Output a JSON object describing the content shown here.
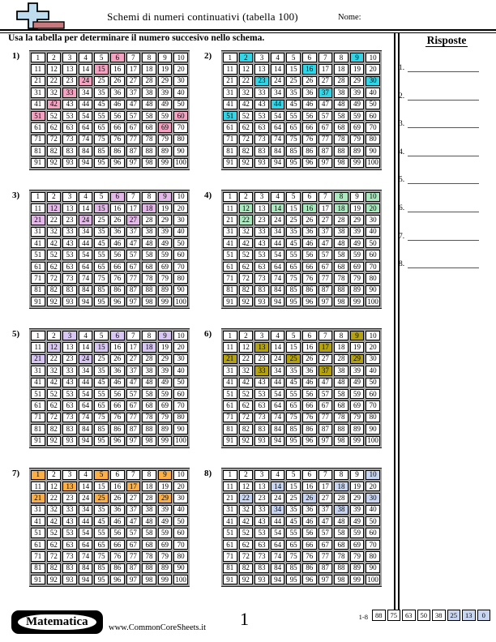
{
  "header": {
    "title": "Schemi di numeri continuativi (tabella 100)",
    "name_label": "Nome:",
    "instruction": "Usa la tabella per determinare il numero succesivo nello schema.",
    "logo_icon": "plus-cross-and-bar-logo"
  },
  "answers": {
    "heading": "Risposte",
    "labels": [
      "1.",
      "2.",
      "3.",
      "4.",
      "5.",
      "6.",
      "7.",
      "8."
    ]
  },
  "grid_spec": {
    "start": 1,
    "end": 100,
    "columns": 10
  },
  "grids": [
    {
      "label": "1)",
      "highlight_color": "#F5A3C2",
      "highlighted": [
        6,
        15,
        24,
        33,
        42,
        51,
        60,
        69
      ]
    },
    {
      "label": "2)",
      "highlight_color": "#33D6E6",
      "highlighted": [
        2,
        9,
        16,
        23,
        30,
        37,
        44,
        51
      ]
    },
    {
      "label": "3)",
      "highlight_color": "#E3B9E8",
      "highlighted": [
        6,
        9,
        12,
        15,
        18,
        21,
        24,
        27
      ]
    },
    {
      "label": "4)",
      "highlight_color": "#ACE8BF",
      "highlighted": [
        8,
        10,
        12,
        14,
        16,
        18,
        20,
        22
      ]
    },
    {
      "label": "5)",
      "highlight_color": "#D7C7F2",
      "highlighted": [
        3,
        6,
        9,
        12,
        15,
        18,
        21,
        24
      ]
    },
    {
      "label": "6)",
      "highlight_color": "#B4A30E",
      "highlighted": [
        9,
        13,
        17,
        21,
        25,
        29,
        33,
        37
      ]
    },
    {
      "label": "7)",
      "highlight_color": "#FBB047",
      "highlighted": [
        1,
        5,
        9,
        13,
        17,
        21,
        25,
        29
      ]
    },
    {
      "label": "8)",
      "highlight_color": "#C9D6F2",
      "highlighted": [
        10,
        14,
        18,
        22,
        26,
        30,
        34,
        38
      ]
    }
  ],
  "footer": {
    "badge_label": "Matematica",
    "url": "www.CommonCoreSheets.it",
    "page_number": "1",
    "score": {
      "label": "1-8",
      "values": [
        "88",
        "75",
        "63",
        "50",
        "38",
        "25",
        "13",
        "0"
      ],
      "highlighted_values": [
        "25",
        "13",
        "0"
      ],
      "highlight_color": "#C9D6F2"
    }
  }
}
